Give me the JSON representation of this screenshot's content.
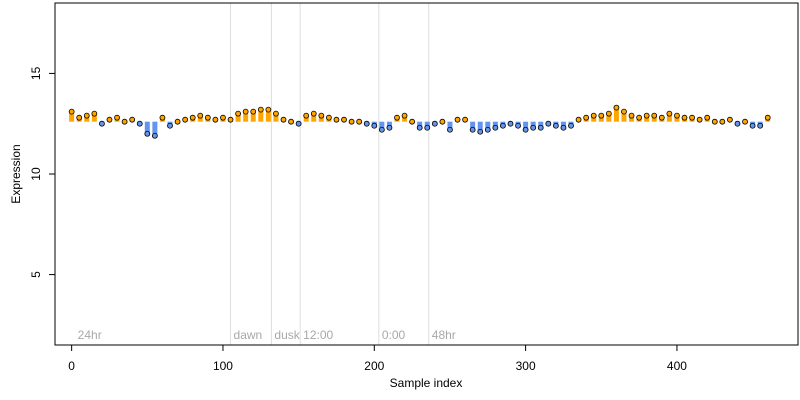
{
  "chart_data": {
    "type": "scatter",
    "title": "",
    "xlabel": "Sample index",
    "ylabel": "Expression",
    "xlim": [
      -11,
      480
    ],
    "ylim": [
      1.5,
      18.5
    ],
    "baseline": 12.6,
    "x_ticks": [
      0,
      100,
      200,
      300,
      400
    ],
    "y_ticks": [
      5,
      10,
      15
    ],
    "phase_markers": [
      {
        "label": "24hr",
        "x": 2,
        "line": false
      },
      {
        "label": "dawn",
        "x": 105,
        "line": true
      },
      {
        "label": "dusk",
        "x": 132,
        "line": true
      },
      {
        "label": "12:00",
        "x": 151,
        "line": true
      },
      {
        "label": "0:00",
        "x": 203,
        "line": true
      },
      {
        "label": "48hr",
        "x": 236,
        "line": true
      }
    ],
    "colors": {
      "above_fill": "#ffa500",
      "below_fill": "#6495ed",
      "point_stroke": "#000000",
      "phase_line": "#dddddd",
      "phase_text": "#a8a8a8"
    },
    "series": [
      {
        "x": [
          0,
          5,
          10,
          15,
          20,
          25,
          30,
          35,
          40,
          45,
          50,
          55,
          60,
          65,
          70,
          75,
          80,
          85,
          90,
          95,
          100,
          105,
          110,
          115,
          120,
          125,
          130,
          135,
          140,
          145,
          150,
          155,
          160,
          165,
          170,
          175,
          180,
          185,
          190,
          195,
          200,
          205,
          210,
          215,
          220,
          225,
          230,
          235,
          240,
          245,
          250,
          255,
          260,
          265,
          270,
          275,
          280,
          285,
          290,
          295,
          300,
          305,
          310,
          315,
          320,
          325,
          330,
          335,
          340,
          345,
          350,
          355,
          360,
          365,
          370,
          375,
          380,
          385,
          390,
          395,
          400,
          405,
          410,
          415,
          420,
          425,
          430,
          435,
          440,
          445,
          450,
          455,
          460
        ],
        "values": [
          13.1,
          12.8,
          12.9,
          13.0,
          12.5,
          12.7,
          12.8,
          12.6,
          12.7,
          12.5,
          12.0,
          11.9,
          12.8,
          12.4,
          12.6,
          12.7,
          12.8,
          12.9,
          12.8,
          12.7,
          12.8,
          12.7,
          13.0,
          13.1,
          13.1,
          13.2,
          13.2,
          13.0,
          12.7,
          12.6,
          12.5,
          12.9,
          13.0,
          12.9,
          12.8,
          12.7,
          12.7,
          12.6,
          12.6,
          12.5,
          12.4,
          12.2,
          12.3,
          12.8,
          12.9,
          12.6,
          12.3,
          12.3,
          12.5,
          12.6,
          12.2,
          12.7,
          12.7,
          12.2,
          12.1,
          12.2,
          12.3,
          12.4,
          12.5,
          12.4,
          12.2,
          12.3,
          12.3,
          12.5,
          12.4,
          12.3,
          12.4,
          12.7,
          12.8,
          12.9,
          12.9,
          13.0,
          13.3,
          13.1,
          12.9,
          12.8,
          12.9,
          12.9,
          12.8,
          13.0,
          12.9,
          12.8,
          12.8,
          12.7,
          12.8,
          12.6,
          12.6,
          12.7,
          12.5,
          12.6,
          12.4,
          12.4,
          12.8
        ]
      }
    ]
  }
}
